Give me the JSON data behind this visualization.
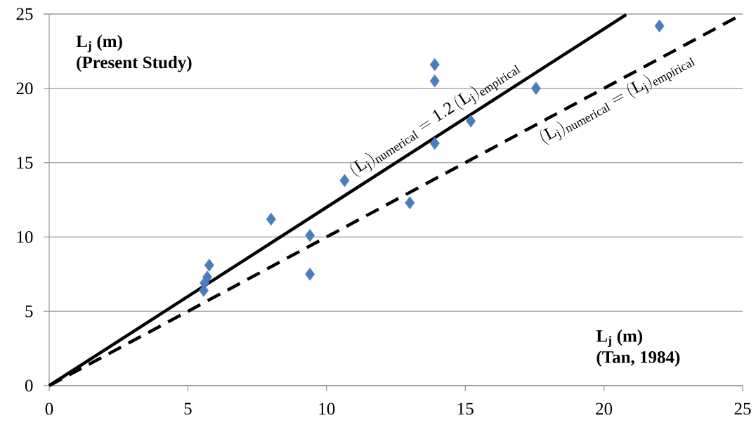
{
  "chart_data": {
    "type": "scatter",
    "xlabel": "L$_{j}$ (m)",
    "ylabel": "L$_{j}$ (m)",
    "series": [
      {
        "marker": "diamond",
        "color": "#4a7ebb",
        "x": [
          5.57,
          5.6,
          5.7,
          5.77,
          8.0,
          9.4,
          9.4,
          10.65,
          13.0,
          13.9,
          13.9,
          13.9,
          15.2,
          17.55,
          22.0
        ],
        "values": [
          6.4,
          6.9,
          7.3,
          8.1,
          11.2,
          10.1,
          7.5,
          13.8,
          12.3,
          16.3,
          20.5,
          21.6,
          17.8,
          20.0,
          24.2
        ]
      },
      {
        "type": "line",
        "color": "#000000",
        "line_style": "solid",
        "x": [
          0,
          20.8
        ],
        "values": [
          0,
          24.96
        ]
      },
      {
        "type": "line",
        "color": "#000000",
        "line_style": "dashed",
        "x": [
          0,
          25
        ],
        "values": [
          0,
          25
        ]
      }
    ],
    "annotations": [
      {
        "text": "\\mathrm{(L_{j})_{numerical} = 1.2\\,(L_{j})_{empirical}}",
        "x": 14.2,
        "y": 17.04
      },
      {
        "text": "\\mathrm{(L_{j})_{numerical} = (L_{j})_{empirical}}",
        "x": 20.2,
        "y": 20.2
      },
      "(Present Study)",
      "(Tan, 1984)"
    ],
    "xlim": [
      0,
      25
    ],
    "ylim": [
      0,
      25
    ],
    "xticks": [
      0,
      5,
      10,
      15,
      20,
      25
    ],
    "yticks": [
      0,
      5,
      10,
      15,
      20,
      25
    ],
    "grid": "y"
  }
}
